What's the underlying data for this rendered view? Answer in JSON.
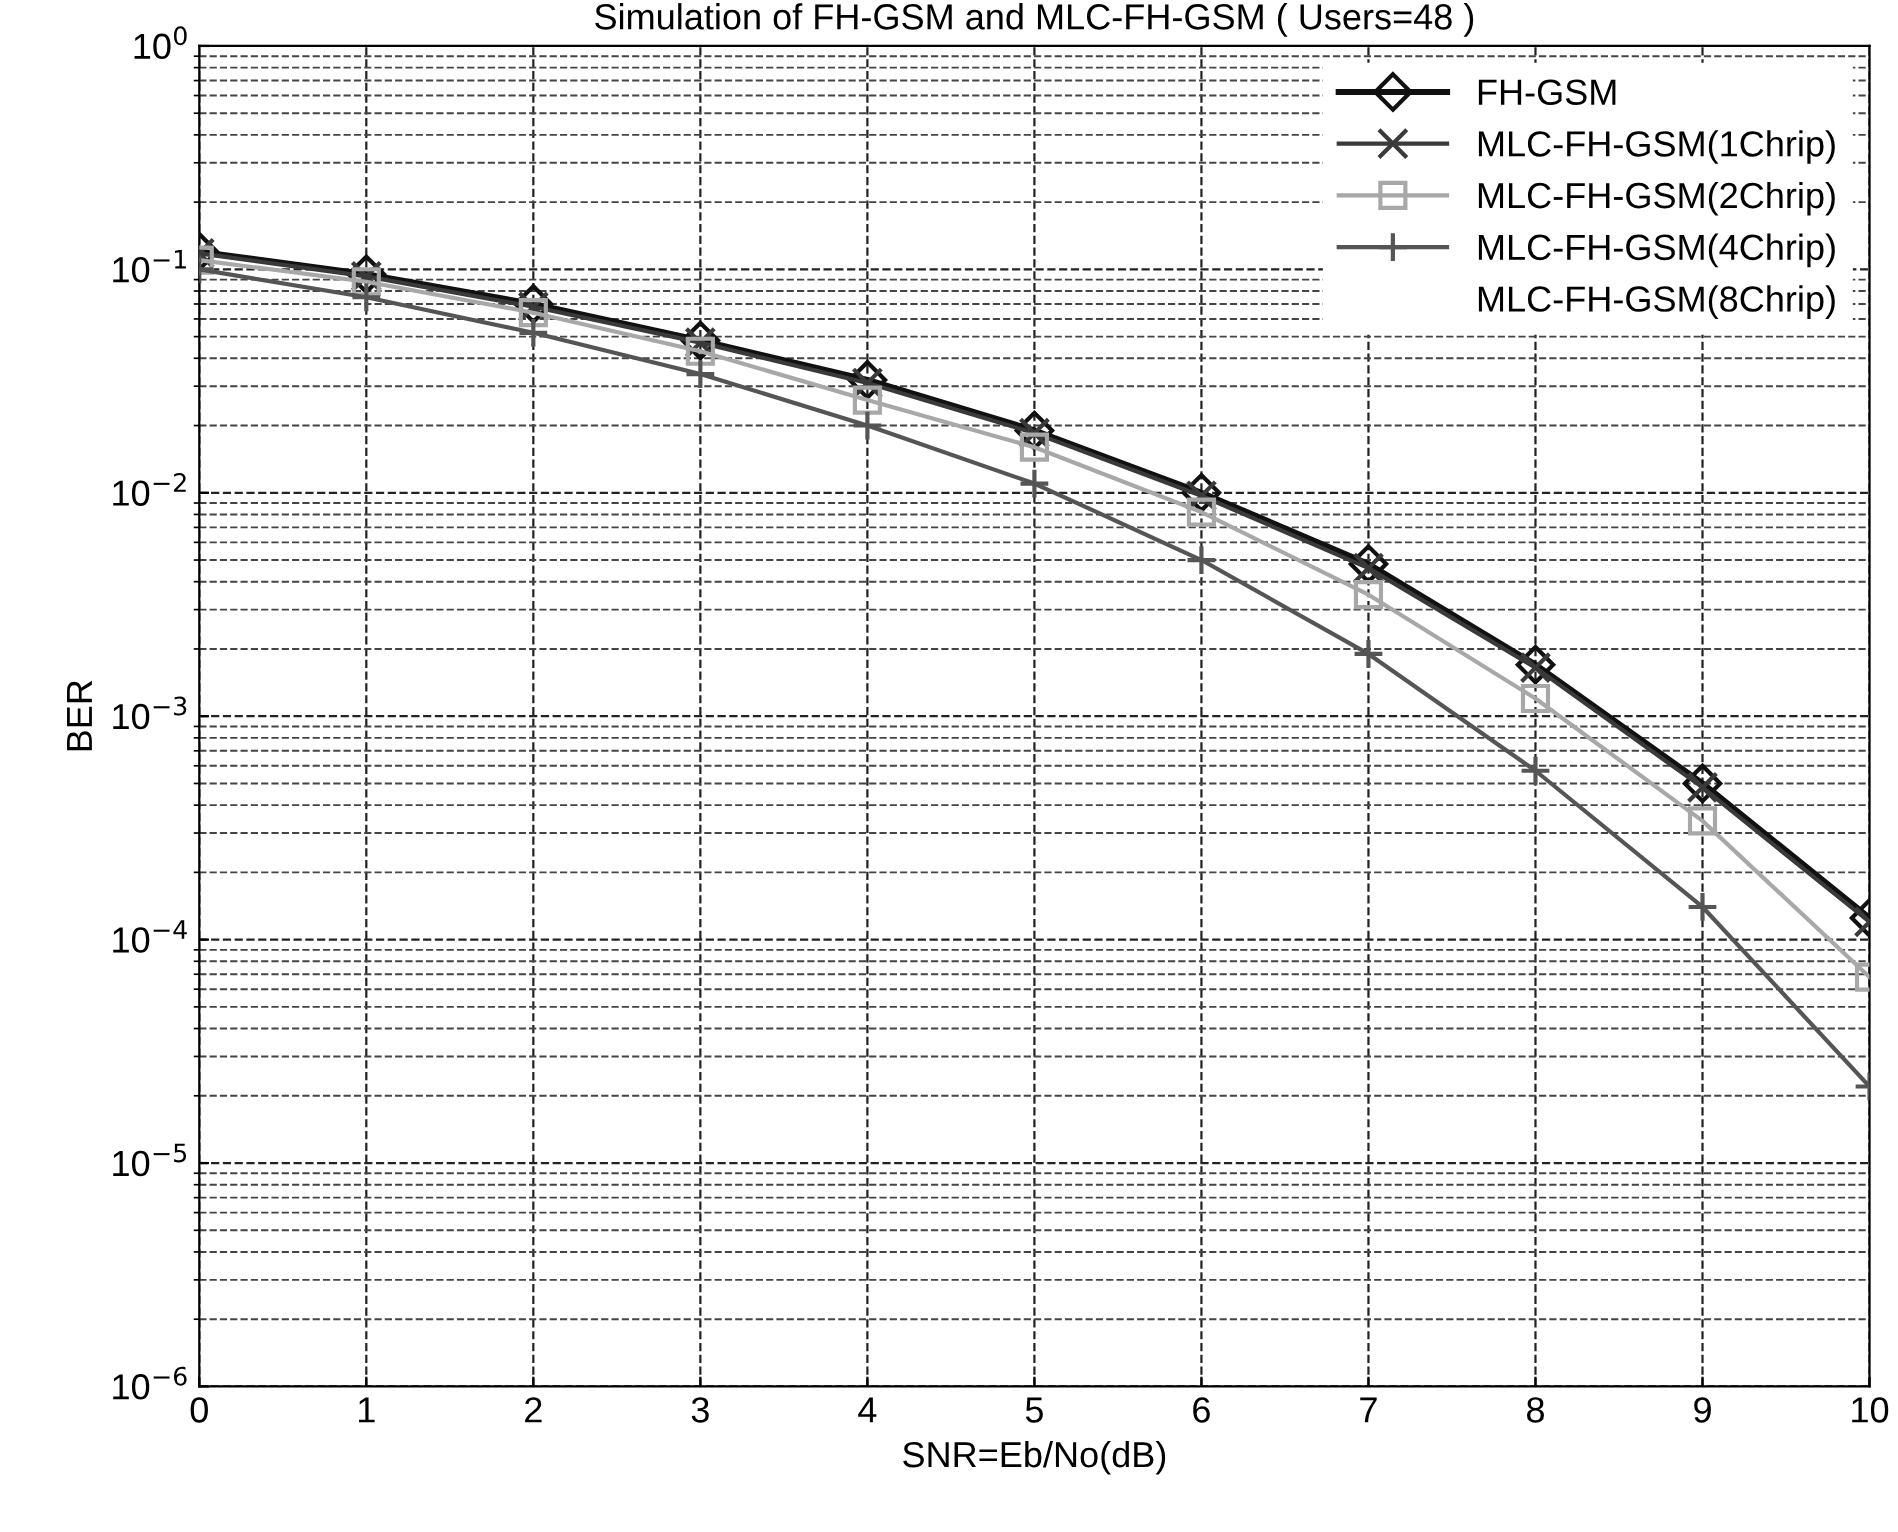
{
  "chart_data": {
    "type": "line",
    "title": "Simulation of FH-GSM and MLC-FH-GSM ( Users=48 )",
    "xlabel": "SNR=Eb/No(dB)",
    "ylabel": "BER",
    "x": [
      0,
      1,
      2,
      3,
      4,
      5,
      6,
      7,
      8,
      9,
      10
    ],
    "series": [
      {
        "name": "FH-GSM",
        "color": "#111111",
        "marker": "diamond",
        "values": [
          0.12,
          0.095,
          0.07,
          0.048,
          0.032,
          0.019,
          0.01,
          0.0048,
          0.0017,
          0.0005,
          0.000125
        ]
      },
      {
        "name": "MLC-FH-GSM(1Chrip)",
        "color": "#3a3a3a",
        "marker": "cross",
        "values": [
          0.118,
          0.093,
          0.068,
          0.047,
          0.031,
          0.0185,
          0.0097,
          0.0046,
          0.00165,
          0.00048,
          0.00012
        ]
      },
      {
        "name": "MLC-FH-GSM(2Chrip)",
        "color": "#a8a8a8",
        "marker": "square",
        "values": [
          0.11,
          0.088,
          0.064,
          0.043,
          0.026,
          0.016,
          0.0082,
          0.0035,
          0.0012,
          0.00034,
          6.8e-05
        ]
      },
      {
        "name": "MLC-FH-GSM(4Chrip)",
        "color": "#555555",
        "marker": "cross",
        "values": [
          0.1,
          0.075,
          0.052,
          0.034,
          0.02,
          0.011,
          0.005,
          0.0019,
          0.00057,
          0.00014,
          2.2e-05
        ]
      },
      {
        "name": "MLC-FH-GSM(8Chrip)",
        "marker": "none",
        "values": [
          null,
          null,
          null,
          null,
          null,
          null,
          null,
          null,
          null,
          null,
          null
        ]
      }
    ],
    "log": "y",
    "xlim": [
      0,
      10
    ],
    "xticks": [
      0,
      1,
      2,
      3,
      4,
      5,
      6,
      7,
      8,
      9,
      10
    ],
    "ylim": [
      1e-06,
      1
    ],
    "yticks": [
      {
        "value": 1e-06,
        "label": "10$^{−6}$"
      },
      {
        "value": 1e-05,
        "label": "10$^{−5}$"
      },
      {
        "value": 0.0001,
        "label": "10$^{−4}$"
      },
      {
        "value": 0.001,
        "label": "10$^{−3}$"
      },
      {
        "value": 0.01,
        "label": "10$^{−2}$"
      },
      {
        "value": 0.1,
        "label": "10$^{−1}$"
      },
      {
        "value": 1,
        "label": "10$^{0}$"
      }
    ],
    "grid": true,
    "legend": "top right"
  }
}
